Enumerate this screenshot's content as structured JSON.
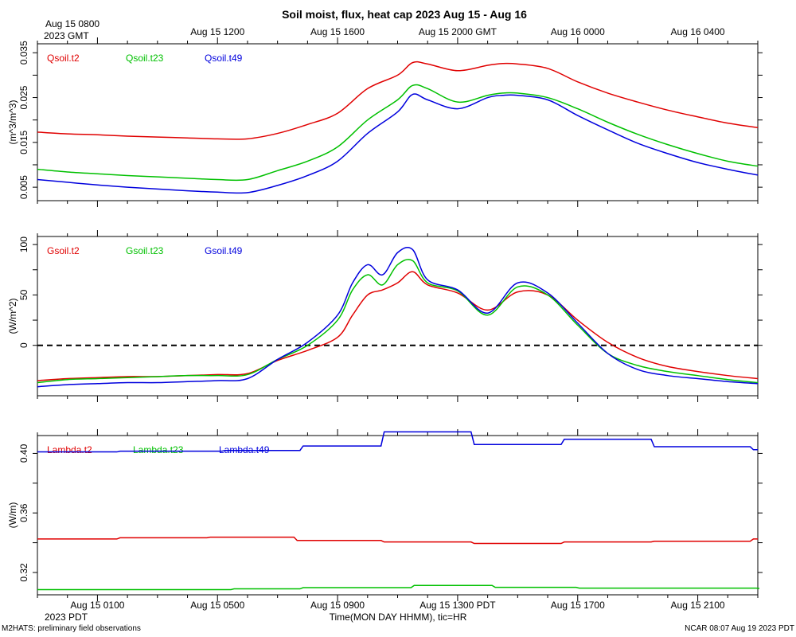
{
  "title": "Soil moist, flux, heat cap 2023 Aug 15 - Aug 16",
  "top_axis": {
    "first_label_line1": "Aug 15 0800",
    "first_label_line2": "2023 GMT",
    "labels": [
      "Aug 15 1200",
      "Aug 15 1600",
      "Aug 15 2000 GMT",
      "Aug 16 0000",
      "Aug 16 0400"
    ]
  },
  "bottom_axis": {
    "labels": [
      "Aug 15 0100",
      "Aug 15 0500",
      "Aug 15 0900",
      "Aug 15 1300 PDT",
      "Aug 15 1700",
      "Aug 15 2100"
    ],
    "year_label": "2023 PDT",
    "xlabel": "Time(MON DAY HHMM), tic=HR"
  },
  "footer": {
    "left": "M2HATS: preliminary field observations",
    "right": "NCAR 08:07 Aug 19 2023 PDT"
  },
  "colors": {
    "t2": "#e00000",
    "t23": "#00c000",
    "t49": "#0000dd"
  },
  "chart_data": [
    {
      "type": "line",
      "panel": "moisture",
      "ylabel": "(m^3/m^3)",
      "ylim": [
        0.002,
        0.037
      ],
      "yticks": [
        "0.005",
        "0.015",
        "0.025",
        "0.035"
      ],
      "ytick_values": [
        0.005,
        0.015,
        0.025,
        0.035
      ],
      "xlim_hours": [
        0,
        24
      ],
      "x_hours": [
        0,
        1,
        2,
        3,
        4,
        5,
        6,
        7,
        8,
        9,
        10,
        11,
        12,
        12.5,
        13,
        14,
        15,
        15.5,
        16,
        17,
        18,
        19,
        20,
        21,
        22,
        23,
        24
      ],
      "series": [
        {
          "name": "Qsoil.t2",
          "color_key": "t2",
          "values": [
            0.0173,
            0.0169,
            0.0167,
            0.0164,
            0.0162,
            0.016,
            0.0158,
            0.0158,
            0.017,
            0.019,
            0.0215,
            0.027,
            0.03,
            0.0328,
            0.0325,
            0.031,
            0.0322,
            0.0326,
            0.0325,
            0.0315,
            0.0285,
            0.026,
            0.024,
            0.0222,
            0.0207,
            0.0193,
            0.0183
          ]
        },
        {
          "name": "Qsoil.t23",
          "color_key": "t23",
          "values": [
            0.009,
            0.0084,
            0.008,
            0.0076,
            0.0073,
            0.007,
            0.0067,
            0.0067,
            0.0087,
            0.0108,
            0.014,
            0.02,
            0.0245,
            0.0277,
            0.027,
            0.024,
            0.0255,
            0.026,
            0.026,
            0.025,
            0.0225,
            0.0195,
            0.0168,
            0.0145,
            0.0125,
            0.0108,
            0.0097
          ]
        },
        {
          "name": "Qsoil.t49",
          "color_key": "t49",
          "values": [
            0.0067,
            0.0061,
            0.0055,
            0.005,
            0.0046,
            0.0042,
            0.0039,
            0.0038,
            0.0054,
            0.0076,
            0.0108,
            0.017,
            0.0218,
            0.0257,
            0.0245,
            0.0225,
            0.025,
            0.0255,
            0.0255,
            0.0245,
            0.021,
            0.0178,
            0.0148,
            0.0125,
            0.0105,
            0.009,
            0.0077
          ]
        }
      ]
    },
    {
      "type": "line",
      "panel": "flux",
      "ylabel": "(W/m^2)",
      "ylim": [
        -50,
        108
      ],
      "yticks": [
        "0",
        "50",
        "100"
      ],
      "ytick_values": [
        0,
        50,
        100
      ],
      "zero_line": true,
      "xlim_hours": [
        0,
        24
      ],
      "x_hours": [
        0,
        1,
        2,
        3,
        4,
        5,
        6,
        7,
        8,
        9,
        10,
        10.5,
        11,
        11.5,
        12,
        12.5,
        13,
        14,
        15,
        16,
        17,
        18,
        19,
        20,
        21,
        22,
        23,
        24
      ],
      "series": [
        {
          "name": "Gsoil.t2",
          "color_key": "t2",
          "values": [
            -35,
            -33,
            -32,
            -31,
            -31,
            -30,
            -29,
            -28,
            -15,
            -5,
            8,
            30,
            50,
            55,
            62,
            73,
            60,
            52,
            35,
            53,
            50,
            25,
            3,
            -12,
            -21,
            -26,
            -30,
            -33
          ]
        },
        {
          "name": "Gsoil.t23",
          "color_key": "t23",
          "values": [
            -37,
            -34,
            -33,
            -32,
            -31,
            -30,
            -30,
            -29,
            -14,
            0,
            25,
            55,
            70,
            60,
            80,
            84,
            62,
            54,
            30,
            58,
            50,
            20,
            -8,
            -20,
            -26,
            -30,
            -34,
            -37
          ]
        },
        {
          "name": "Gsoil.t49",
          "color_key": "t49",
          "values": [
            -41,
            -39,
            -38,
            -37,
            -37,
            -36,
            -35,
            -33,
            -14,
            3,
            30,
            62,
            80,
            70,
            92,
            95,
            65,
            55,
            32,
            62,
            52,
            22,
            -8,
            -24,
            -30,
            -33,
            -36,
            -38
          ]
        }
      ]
    },
    {
      "type": "line",
      "panel": "conductivity",
      "ylabel": "(W/m)",
      "ylim": [
        0.305,
        0.412
      ],
      "yticks": [
        "0.32",
        "0.36",
        "0.40"
      ],
      "ytick_values": [
        0.32,
        0.36,
        0.4
      ],
      "xlim_hours": [
        0,
        24
      ],
      "series": [
        {
          "name": "Lambda.t2",
          "color_key": "t2",
          "steps": [
            [
              0,
              0.3425
            ],
            [
              2.7,
              0.3433
            ],
            [
              5.7,
              0.3437
            ],
            [
              8.6,
              0.3415
            ],
            [
              11.5,
              0.3405
            ],
            [
              14.5,
              0.3395
            ],
            [
              17.5,
              0.3405
            ],
            [
              20.5,
              0.341
            ],
            [
              23.8,
              0.3425
            ]
          ]
        },
        {
          "name": "Lambda.t23",
          "color_key": "t23",
          "steps": [
            [
              0,
              0.3085
            ],
            [
              6.5,
              0.309
            ],
            [
              8.8,
              0.3098
            ],
            [
              12.5,
              0.3113
            ],
            [
              15.2,
              0.31
            ],
            [
              18,
              0.3095
            ],
            [
              24,
              0.3093
            ]
          ]
        },
        {
          "name": "Lambda.t49",
          "color_key": "t49",
          "steps": [
            [
              0,
              0.401
            ],
            [
              2.7,
              0.4015
            ],
            [
              6.2,
              0.402
            ],
            [
              8.8,
              0.405
            ],
            [
              11.5,
              0.4145
            ],
            [
              14.5,
              0.406
            ],
            [
              17.5,
              0.4095
            ],
            [
              20.5,
              0.4045
            ],
            [
              23.8,
              0.4025
            ]
          ]
        }
      ]
    }
  ]
}
